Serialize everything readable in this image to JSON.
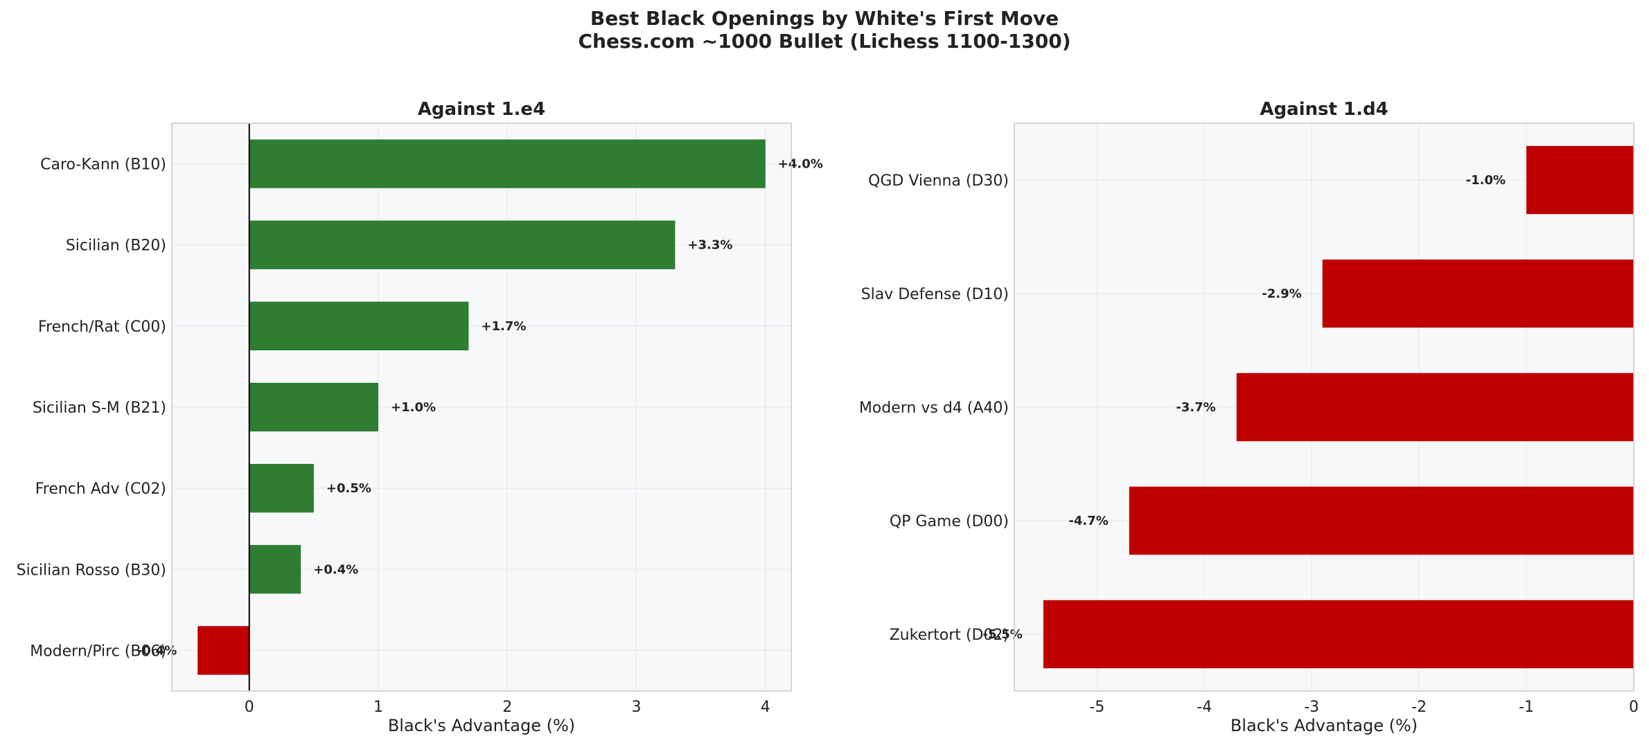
{
  "figure": {
    "title_line1": "Best Black Openings by White's First Move",
    "title_line2": "Chess.com ~1000 Bullet (Lichess 1100-1300)"
  },
  "colors": {
    "positive": "#2e7d32",
    "negative": "#c00000",
    "plot_bg": "#f7f8fa",
    "grid": "#e3e6ea",
    "spine": "#c8c8c8",
    "zero_line": "#000000"
  },
  "chart_data": [
    {
      "type": "bar",
      "orientation": "horizontal",
      "title": "Against 1.e4",
      "xlabel": "Black's Advantage (%)",
      "ylabel": "",
      "categories": [
        "Caro-Kann (B10)",
        "Sicilian (B20)",
        "French/Rat (C00)",
        "Sicilian S-M (B21)",
        "French Adv (C02)",
        "Sicilian Rosso (B30)",
        "Modern/Pirc (B06)"
      ],
      "values": [
        4.0,
        3.3,
        1.7,
        1.0,
        0.5,
        0.4,
        -0.4
      ],
      "value_labels": [
        "+4.0%",
        "+3.3%",
        "+1.7%",
        "+1.0%",
        "+0.5%",
        "+0.4%",
        "-0.4%"
      ],
      "xlim": [
        -0.6,
        4.2
      ],
      "xticks": [
        0,
        1,
        2,
        3,
        4
      ],
      "xtick_labels": [
        "0",
        "1",
        "2",
        "3",
        "4"
      ],
      "zero_line": true,
      "grid": true
    },
    {
      "type": "bar",
      "orientation": "horizontal",
      "title": "Against 1.d4",
      "xlabel": "Black's Advantage (%)",
      "ylabel": "",
      "categories": [
        "QGD Vienna (D30)",
        "Slav Defense (D10)",
        "Modern vs d4 (A40)",
        "QP Game (D00)",
        "Zukertort (D02)"
      ],
      "values": [
        -1.0,
        -2.9,
        -3.7,
        -4.7,
        -5.5
      ],
      "value_labels": [
        "-1.0%",
        "-2.9%",
        "-3.7%",
        "-4.7%",
        "-5.5%"
      ],
      "xlim": [
        -5.77,
        0
      ],
      "xticks": [
        -5,
        -4,
        -3,
        -2,
        -1,
        0
      ],
      "xtick_labels": [
        "-5",
        "-4",
        "-3",
        "-2",
        "-1",
        "0"
      ],
      "zero_line": false,
      "grid": true
    }
  ]
}
